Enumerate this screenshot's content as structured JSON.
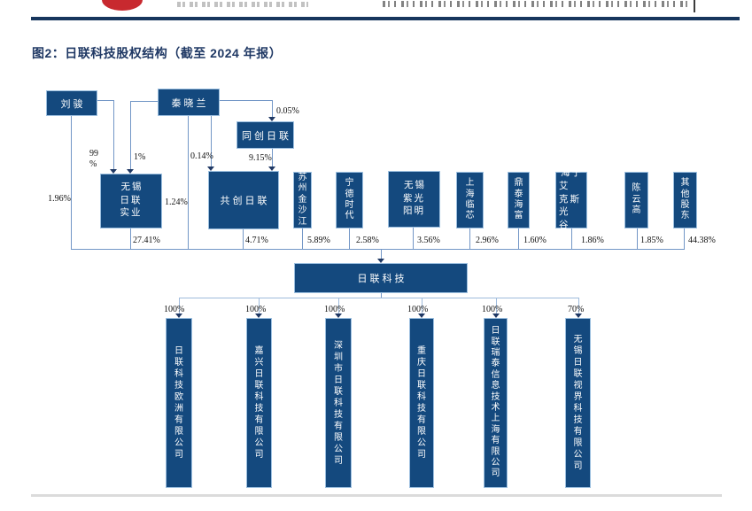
{
  "figure": {
    "caption": "图2：日联科技股权结构（截至 2024 年报）"
  },
  "diagram": {
    "top_shareholders": [
      {
        "name": "刘骏"
      },
      {
        "name": "秦晓兰"
      },
      {
        "name": "同创日联"
      }
    ],
    "edges": {
      "liujun_direct": "1.96%",
      "liujun_to_wuxi_rilian": "99\n%",
      "qinxiaolan_to_wuxi_rilian": "1%",
      "qinxiaolan_direct": "1.24%",
      "qinxiaolan_to_gongchuang": "0.14%",
      "qinxiaolan_to_tongchuang": "0.05%",
      "tongchuang_to_gongchuang": "9.15%"
    },
    "shareholders": [
      {
        "name": "无锡日联实业",
        "display_lines": [
          "无锡",
          "日联",
          "实业"
        ],
        "stake": "27.41%"
      },
      {
        "name": "共创日联",
        "stake": "4.71%"
      },
      {
        "name": "苏州金沙江",
        "stake": "5.89%"
      },
      {
        "name": "宁德时代",
        "stake": "2.58%"
      },
      {
        "name": "无锡紫光阳明",
        "display_lines": [
          "无锡",
          "紫光",
          "阳明"
        ],
        "stake": "3.56%"
      },
      {
        "name": "上海临芯",
        "stake": "2.96%"
      },
      {
        "name": "鼎泰海富",
        "stake": "1.60%"
      },
      {
        "name": "海宁艾克斯光谷",
        "display_lines": [
          "海宁艾",
          "克斯光",
          "谷"
        ],
        "stake": "1.86%"
      },
      {
        "name": "陈云高",
        "stake": "1.85%"
      },
      {
        "name": "其他股东",
        "stake": "44.38%"
      }
    ],
    "company": {
      "name": "日联科技"
    },
    "subsidiaries": [
      {
        "name": "日联科技欧洲有限公司",
        "stake": "100%"
      },
      {
        "name": "嘉兴日联科技有限公司",
        "stake": "100%"
      },
      {
        "name": "深圳市日联科技有限公司",
        "stake": "100%"
      },
      {
        "name": "重庆日联科技有限公司",
        "stake": "100%"
      },
      {
        "name": "日联瑞泰信息技术上海有限公司",
        "stake": "100%"
      },
      {
        "name": "无锡日联视界科技有限公司",
        "stake": "70%"
      }
    ],
    "colors": {
      "node_fill": "#14497E",
      "node_border": "#9DC0E0",
      "connector": "#7296C6",
      "arrow": "#1F3864"
    }
  }
}
